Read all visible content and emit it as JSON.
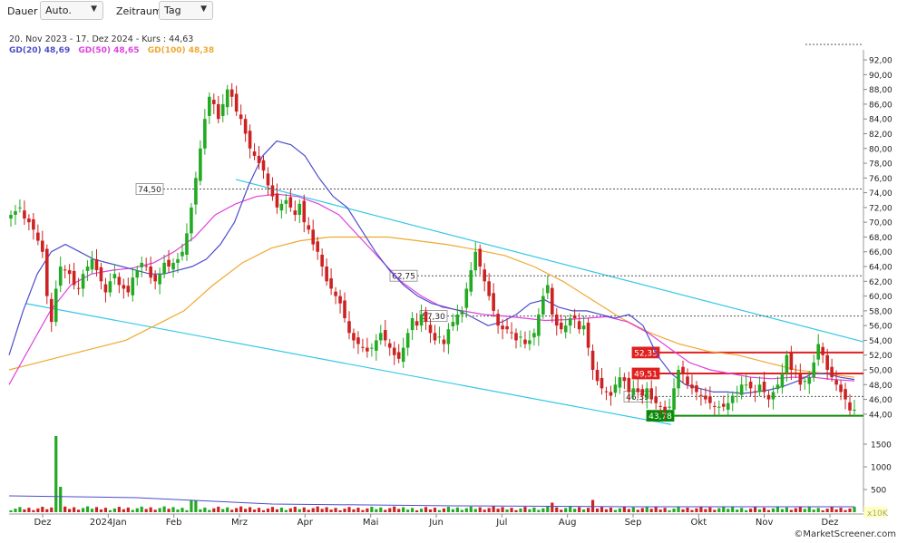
{
  "toolbar": {
    "duration_label": "Dauer",
    "duration_value": "Auto.",
    "range_label": "Zeitraum",
    "range_value": "Tag"
  },
  "header": {
    "info": "20. Nov 2023 - 17. Dez 2024 - Kurs : 44,63",
    "legend": [
      {
        "label": "GD(20)",
        "value": "48,69",
        "color": "#4d4dcc"
      },
      {
        "label": "GD(50)",
        "value": "48,65",
        "color": "#e040e0"
      },
      {
        "label": "GD(100)",
        "value": "48,38",
        "color": "#f0a830"
      }
    ]
  },
  "copyright": "©MarketScreener.com",
  "volume_unit": "x10K",
  "colors": {
    "up": "#22aa22",
    "down": "#cc2222",
    "ma20": "#4d4dcc",
    "ma50": "#e040e0",
    "ma100": "#f0a830",
    "channel": "#33c8e8",
    "support": "#0a8a0a",
    "resistance": "#e02020"
  },
  "chart_data": {
    "type": "candlestick",
    "title": "",
    "x_axis_labels": [
      "Dez",
      "2024Jan",
      "Feb",
      "Mrz",
      "Apr",
      "Mai",
      "Jun",
      "Jul",
      "Aug",
      "Sep",
      "Okt",
      "Nov",
      "Dez"
    ],
    "y_ticks": [
      "44,00",
      "46,00",
      "48,00",
      "50,00",
      "52,00",
      "54,00",
      "56,00",
      "58,00",
      "60,00",
      "62,00",
      "64,00",
      "66,00",
      "68,00",
      "70,00",
      "72,00",
      "74,00",
      "76,00",
      "78,00",
      "80,00",
      "82,00",
      "84,00",
      "86,00",
      "88,00",
      "90,00",
      "92,00"
    ],
    "ylim": [
      43,
      92.5
    ],
    "volume_ticks": [
      "500",
      "1000",
      "1500"
    ],
    "volume_lim": [
      0,
      1700
    ],
    "price_levels": [
      {
        "label": "74,50",
        "value": 74.5,
        "style": "dotted"
      },
      {
        "label": "62,75",
        "value": 62.75,
        "style": "dotted"
      },
      {
        "label": "57,30",
        "value": 57.3,
        "style": "dotted"
      },
      {
        "label": "52,35",
        "value": 52.35,
        "style": "resistance"
      },
      {
        "label": "49,51",
        "value": 49.51,
        "style": "resistance"
      },
      {
        "label": "46,39",
        "value": 46.39,
        "style": "dotted"
      },
      {
        "label": "43,78",
        "value": 43.78,
        "style": "support"
      }
    ],
    "close_series": [
      71,
      71.5,
      72,
      70.5,
      70,
      69,
      67.5,
      66,
      60,
      56.5,
      61,
      64,
      63.5,
      63,
      61.5,
      61,
      63,
      64,
      65,
      63.5,
      62,
      60.5,
      62,
      63,
      61.5,
      61,
      60.5,
      62.5,
      63.5,
      64.5,
      64,
      62.5,
      62,
      63,
      64.5,
      64,
      64.5,
      65,
      66,
      68.5,
      72,
      76,
      80,
      84,
      87,
      86,
      84,
      86,
      88,
      87,
      85,
      84,
      82,
      80,
      79,
      78,
      77,
      75,
      73.5,
      72,
      72.5,
      73,
      72,
      71,
      72.5,
      70,
      69,
      67,
      66,
      64,
      62,
      61,
      60,
      59,
      57,
      55,
      54,
      53.5,
      53,
      52.5,
      53,
      54,
      55,
      54,
      53,
      52,
      51.5,
      53,
      55,
      57,
      56,
      57.5,
      56.5,
      55,
      54,
      54.5,
      53.5,
      55.5,
      56.5,
      57.5,
      58,
      61,
      63.5,
      66,
      64,
      62,
      60,
      58,
      56,
      55.5,
      55.5,
      55,
      54,
      54.5,
      53.5,
      54,
      55,
      57.5,
      60,
      61.5,
      57.5,
      56,
      55.5,
      56,
      57,
      57,
      55.5,
      56,
      53,
      50,
      48.5,
      47.5,
      47,
      46.5,
      48,
      49,
      48.5,
      47,
      47.5,
      47,
      46.5,
      47.5,
      46,
      45.5,
      45,
      44.5,
      45,
      47.5,
      50,
      49.5,
      48,
      47.5,
      47,
      46.5,
      46,
      45.5,
      45,
      45,
      45,
      45.5,
      46.5,
      47,
      48,
      48,
      47.5,
      47,
      48,
      47,
      46,
      47,
      48,
      49.5,
      52,
      50,
      49.5,
      48,
      48.5,
      49,
      51,
      53.5,
      52,
      50,
      49,
      48,
      47,
      46,
      44.5,
      44.6
    ],
    "ma20": [
      52,
      58,
      63,
      66,
      67,
      66,
      65,
      64.5,
      64,
      63.5,
      63,
      63,
      63.5,
      64,
      65,
      67,
      70,
      75,
      79,
      81,
      80.5,
      79,
      76,
      73.5,
      72,
      69,
      66,
      63.5,
      61.5,
      60,
      59,
      58.5,
      58,
      57,
      56,
      56.5,
      57.5,
      59,
      59.5,
      58.5,
      58,
      58,
      57.5,
      57,
      57.5,
      56,
      52,
      49.5,
      48,
      47.5,
      47,
      47,
      46.8,
      47,
      47.3,
      47.8,
      48.5,
      49.5,
      49.5,
      49,
      48.7
    ],
    "ma50": [
      48,
      53,
      58,
      61.5,
      63,
      63.5,
      63.8,
      64.5,
      66,
      68,
      71,
      72.5,
      73.5,
      73.8,
      73.5,
      72.5,
      71,
      68,
      65,
      62,
      60,
      58.5,
      58,
      57.5,
      57.3,
      57,
      56.7,
      56.8,
      57,
      57.2,
      56.5,
      55,
      53,
      51,
      50,
      49.5,
      49,
      48.8,
      49,
      49,
      48.7,
      48.5
    ],
    "ma100": [
      50,
      51,
      52,
      53,
      54,
      56,
      58,
      61.5,
      64.5,
      66.5,
      67.5,
      68,
      68,
      68,
      67.5,
      67,
      66.3,
      65.5,
      64,
      62,
      59.5,
      57,
      55,
      53.5,
      52.5,
      52,
      51,
      50,
      49.5,
      49
    ]
  }
}
